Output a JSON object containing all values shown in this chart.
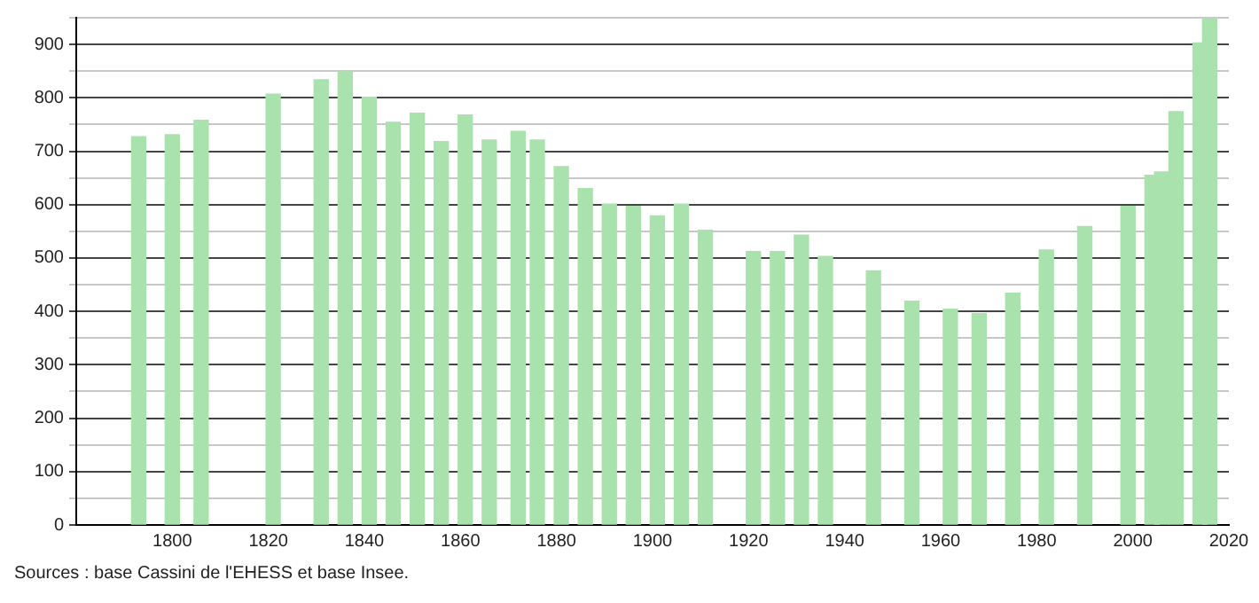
{
  "chart_data": {
    "type": "bar",
    "x": [
      1793,
      1800,
      1806,
      1821,
      1831,
      1836,
      1841,
      1846,
      1851,
      1856,
      1861,
      1866,
      1872,
      1876,
      1881,
      1886,
      1891,
      1896,
      1901,
      1906,
      1911,
      1921,
      1926,
      1931,
      1936,
      1946,
      1954,
      1962,
      1968,
      1975,
      1982,
      1990,
      1999,
      2004,
      2006,
      2009,
      2014,
      2016
    ],
    "values": [
      727,
      731,
      758,
      807,
      834,
      849,
      801,
      754,
      771,
      718,
      768,
      721,
      737,
      721,
      671,
      630,
      601,
      597,
      579,
      601,
      552,
      512,
      512,
      543,
      503,
      476,
      419,
      404,
      396,
      434,
      515,
      559,
      597,
      655,
      661,
      774,
      903,
      948
    ],
    "color": "#a9e2ad",
    "xlim": [
      1780,
      2020
    ],
    "xticks": [
      1800,
      1820,
      1840,
      1860,
      1880,
      1900,
      1920,
      1940,
      1960,
      1980,
      2000,
      2020
    ],
    "ylim": [
      0,
      950
    ],
    "yticks": [
      0,
      {
        "value": 50,
        "label": null
      },
      100,
      {
        "value": 150,
        "label": null
      },
      200,
      {
        "value": 250,
        "label": null
      },
      300,
      {
        "value": 350,
        "label": null
      },
      400,
      {
        "value": 450,
        "label": null
      },
      500,
      {
        "value": 550,
        "label": null
      },
      600,
      {
        "value": 650,
        "label": null
      },
      700,
      {
        "value": 750,
        "label": null
      },
      800,
      {
        "value": 850,
        "label": null
      },
      900,
      {
        "value": 950,
        "label": null
      }
    ],
    "grid": "y",
    "annotations": [
      "Sources : base Cassini de l'EHESS et base Insee."
    ]
  }
}
